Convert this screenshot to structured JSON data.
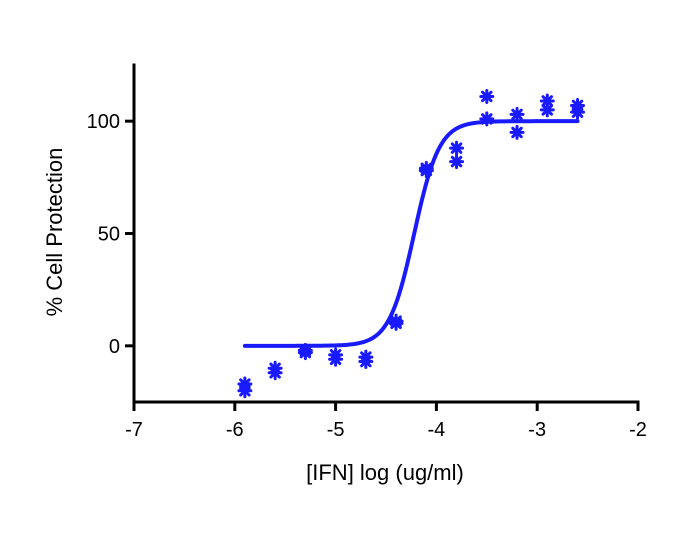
{
  "chart_data": {
    "type": "scatter",
    "title": "",
    "xlabel": "[IFN] log (ug/ml)",
    "ylabel": "% Cell Protection",
    "xlim": [
      -7,
      -2
    ],
    "ylim": [
      -25,
      125
    ],
    "xticks": [
      -7,
      -6,
      -5,
      -4,
      -3,
      -2
    ],
    "yticks": [
      0,
      50,
      100
    ],
    "x_tick_labels": [
      "-7",
      "-6",
      "-5",
      "-4",
      "-3",
      "-2"
    ],
    "y_tick_labels": [
      "0",
      "50",
      "100"
    ],
    "grid": false,
    "legend": "none",
    "series": [
      {
        "marker": "asterisk",
        "color": "#1a1aff",
        "points": [
          [
            -5.9,
            -17
          ],
          [
            -5.9,
            -20
          ],
          [
            -5.6,
            -10
          ],
          [
            -5.6,
            -12
          ],
          [
            -5.3,
            -2
          ],
          [
            -5.3,
            -3
          ],
          [
            -5.0,
            -4
          ],
          [
            -5.0,
            -6
          ],
          [
            -4.7,
            -5
          ],
          [
            -4.7,
            -7
          ],
          [
            -4.4,
            10
          ],
          [
            -4.4,
            11
          ],
          [
            -4.1,
            79
          ],
          [
            -4.1,
            78
          ],
          [
            -3.8,
            88
          ],
          [
            -3.8,
            82
          ],
          [
            -3.5,
            111
          ],
          [
            -3.5,
            101
          ],
          [
            -3.2,
            103
          ],
          [
            -3.2,
            95
          ],
          [
            -2.9,
            109
          ],
          [
            -2.9,
            105
          ],
          [
            -2.6,
            107
          ],
          [
            -2.6,
            104
          ]
        ]
      }
    ],
    "fit_curve": {
      "model": "sigmoidal dose-response",
      "bottom": 0,
      "top": 100,
      "log_ec50": -4.22,
      "hill_slope": 3.5,
      "x_range": [
        -5.9,
        -2.6
      ],
      "color": "#1a1aff"
    }
  }
}
